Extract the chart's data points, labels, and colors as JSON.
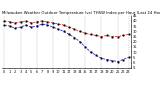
{
  "title": "Milwaukee Weather Outdoor Temperature (vs) THSW Index per Hour (Last 24 Hours)",
  "title_fontsize": 2.8,
  "background_color": "#ffffff",
  "hours": [
    0,
    1,
    2,
    3,
    4,
    5,
    6,
    7,
    8,
    9,
    10,
    11,
    12,
    13,
    14,
    15,
    16,
    17,
    18,
    19,
    20,
    21,
    22,
    23
  ],
  "temp": [
    40,
    39,
    38,
    39,
    40,
    38,
    39,
    40,
    39,
    38,
    37,
    36,
    34,
    32,
    30,
    28,
    27,
    26,
    25,
    26,
    25,
    25,
    26,
    27
  ],
  "thsw": [
    36,
    35,
    33,
    34,
    36,
    34,
    35,
    37,
    36,
    34,
    32,
    30,
    27,
    24,
    20,
    15,
    10,
    7,
    4,
    3,
    2,
    1,
    3,
    5
  ],
  "temp_color": "#dd0000",
  "thsw_color": "#0000dd",
  "marker_color": "#000000",
  "ylim_min": -5,
  "ylim_max": 45,
  "ytick_values": [
    45,
    40,
    35,
    30,
    25,
    20,
    15,
    10,
    5,
    0,
    -5
  ],
  "ytick_labels": [
    "45",
    "40",
    "35",
    "30",
    "25",
    "20",
    "15",
    "10",
    "5",
    "0",
    "-5"
  ],
  "grid_color": "#999999",
  "grid_positions": [
    0,
    3,
    6,
    9,
    12,
    15,
    18,
    21,
    23
  ],
  "line_width": 0.5,
  "marker_size": 1.0,
  "xlabel_fontsize": 2.5,
  "ylabel_fontsize": 2.5
}
